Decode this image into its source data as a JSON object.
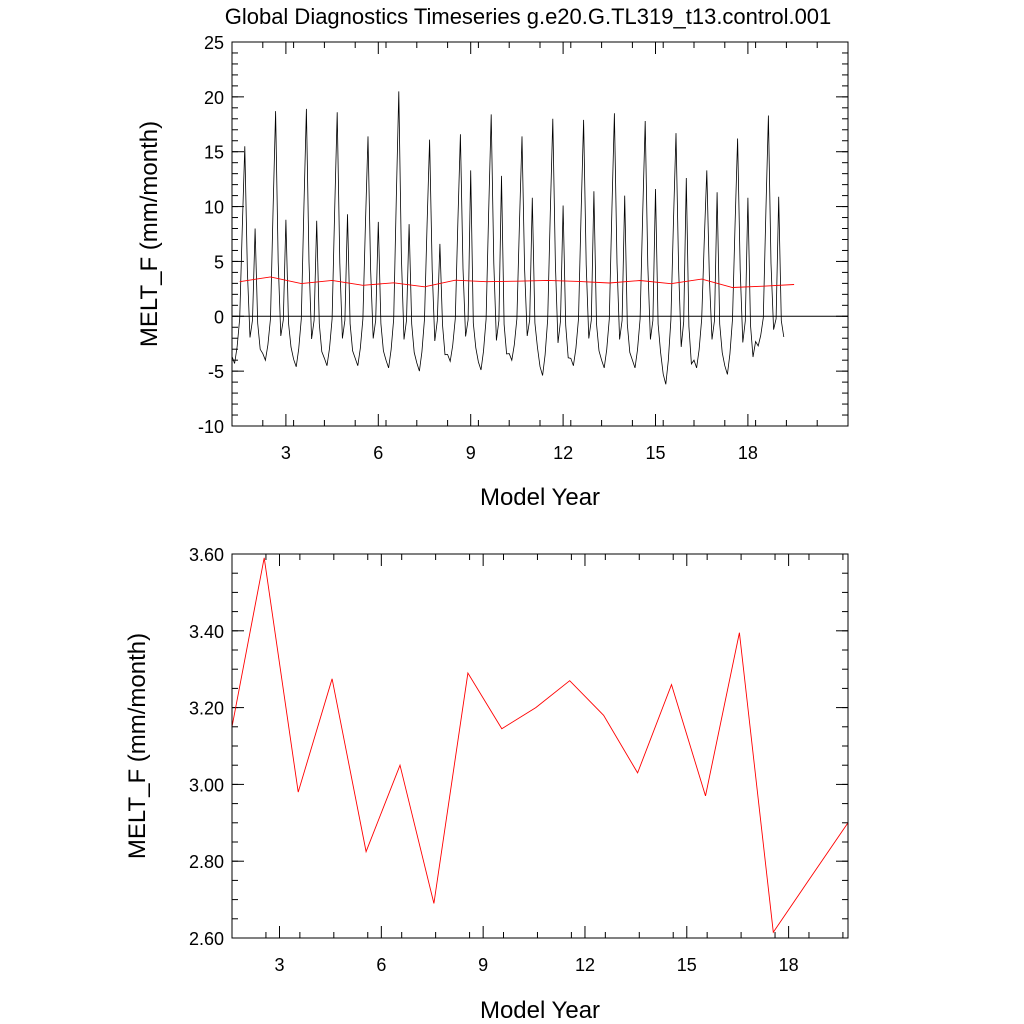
{
  "page_title": "Global Diagnostics Timeseries g.e20.G.TL319_t13.control.001",
  "colors": {
    "monthly": "#000000",
    "annual": "#ff0000",
    "zero_line": "#000000"
  },
  "chart_data": [
    {
      "type": "line",
      "xlabel": "Model Year",
      "ylabel": "MELT_F (mm/month)",
      "xlim": [
        1.25,
        21.25
      ],
      "ylim": [
        -10,
        25
      ],
      "x_ticks": [
        "3",
        "6",
        "9",
        "12",
        "15",
        "18"
      ],
      "x_tick_values": [
        3,
        6,
        9,
        12,
        15,
        18
      ],
      "y_ticks": [
        "25",
        "20",
        "15",
        "10",
        "5",
        "0",
        "-5",
        "-10"
      ],
      "y_tick_values": [
        25,
        20,
        15,
        10,
        5,
        0,
        -5,
        -10
      ],
      "reference_line_y": 0,
      "series": [
        {
          "key": "monthly",
          "peaks": [
            15.5,
            18.7,
            18.9,
            18.6,
            16.4,
            20.5,
            16.1,
            16.6,
            18.4,
            16.4,
            18.0,
            17.9,
            18.5,
            17.8,
            16.7,
            13.3,
            16.2,
            18.3
          ],
          "secondary_peaks": [
            8.0,
            8.8,
            8.7,
            9.3,
            8.6,
            8.4,
            6.6,
            13.3,
            12.8,
            10.8,
            10.1,
            11.4,
            11.0,
            11.6,
            12.6,
            11.3,
            10.8,
            10.9
          ],
          "troughs": [
            -4.3,
            -4.0,
            -4.6,
            -4.5,
            -4.5,
            -4.7,
            -5.0,
            -4.1,
            -4.9,
            -4.0,
            -5.4,
            -4.5,
            -4.7,
            -4.7,
            -6.2,
            -4.7,
            -5.3,
            -2.7
          ]
        },
        {
          "key": "annual",
          "x": [
            1.5,
            2.5,
            3.5,
            4.5,
            5.5,
            6.5,
            7.5,
            8.5,
            9.5,
            10.5,
            11.5,
            12.5,
            13.5,
            14.5,
            15.5,
            16.5,
            17.5,
            18.5,
            19.5
          ],
          "values": [
            3.15,
            3.59,
            2.98,
            3.27,
            2.82,
            3.05,
            2.69,
            3.29,
            3.15,
            3.2,
            3.27,
            3.18,
            3.03,
            3.26,
            2.97,
            3.39,
            2.62,
            2.74,
            2.9
          ]
        }
      ]
    },
    {
      "type": "line",
      "xlabel": "Model Year",
      "ylabel": "MELT_F (mm/month)",
      "xlim": [
        1.6,
        19.75
      ],
      "ylim": [
        2.6,
        3.6
      ],
      "x_ticks": [
        "3",
        "6",
        "9",
        "12",
        "15",
        "18"
      ],
      "x_tick_values": [
        3,
        6,
        9,
        12,
        15,
        18
      ],
      "y_ticks": [
        "3.60",
        "3.40",
        "3.20",
        "3.00",
        "2.80",
        "2.60"
      ],
      "y_tick_values": [
        3.6,
        3.4,
        3.2,
        3.0,
        2.8,
        2.6
      ],
      "series": [
        {
          "key": "annual",
          "x": [
            1.6,
            2.55,
            3.55,
            4.55,
            5.55,
            6.55,
            7.55,
            8.55,
            9.55,
            10.55,
            11.55,
            12.55,
            13.55,
            14.55,
            15.55,
            16.55,
            17.55,
            18.55,
            19.75
          ],
          "values": [
            3.15,
            3.59,
            2.98,
            3.275,
            2.825,
            3.05,
            2.69,
            3.29,
            3.145,
            3.2,
            3.27,
            3.18,
            3.03,
            3.26,
            2.97,
            3.395,
            2.615,
            2.745,
            2.9
          ]
        }
      ]
    }
  ]
}
